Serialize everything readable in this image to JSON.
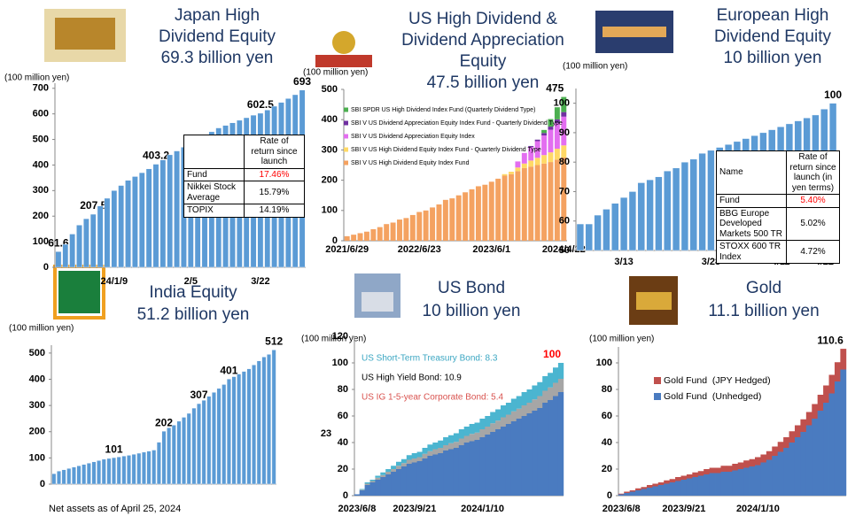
{
  "footnote": "Net assets as of April 25, 2024",
  "chart_data": [
    {
      "type": "bar",
      "title": [
        "Japan High",
        "Dividend Equity",
        "69.3 billion yen"
      ],
      "y_unit": "(100 million yen)",
      "color": "#5b9bd5",
      "ylim": [
        0,
        720
      ],
      "yticks": [
        0,
        100,
        200,
        300,
        400,
        500,
        600,
        700
      ],
      "categories": [
        null,
        null,
        null,
        null,
        null,
        null,
        null,
        null,
        "24/1/9",
        null,
        null,
        null,
        null,
        null,
        null,
        null,
        null,
        null,
        null,
        "2/5",
        null,
        null,
        null,
        null,
        null,
        null,
        null,
        null,
        null,
        "3/22",
        null,
        null,
        null,
        null,
        null,
        null
      ],
      "values": [
        61.6,
        90,
        130,
        165,
        190,
        207.5,
        240,
        270,
        300,
        320,
        340,
        355,
        370,
        385,
        403.2,
        420,
        440,
        455,
        470,
        485,
        500,
        515,
        530,
        545,
        555,
        565,
        575,
        585,
        595,
        602.5,
        615,
        630,
        645,
        660,
        675,
        693
      ],
      "value_labels": [
        "61.6",
        null,
        null,
        null,
        null,
        "207.5",
        null,
        null,
        null,
        null,
        null,
        null,
        null,
        null,
        "403.2",
        null,
        null,
        null,
        null,
        null,
        null,
        null,
        null,
        null,
        null,
        null,
        null,
        null,
        null,
        "602.5",
        null,
        null,
        null,
        null,
        null,
        "693"
      ],
      "table": {
        "header": [
          "Rate of return since launch"
        ],
        "rows": [
          [
            "Fund",
            "17.46%"
          ],
          [
            "Nikkei Stock Average",
            "15.79%"
          ],
          [
            "TOPIX",
            "14.19%"
          ]
        ]
      }
    },
    {
      "type": "bar",
      "stacked": true,
      "title": [
        "US High Dividend &",
        "Dividend Appreciation",
        "Equity",
        "47.5 billion yen"
      ],
      "y_unit": "(100 million yen)",
      "ylim": [
        0,
        500
      ],
      "yticks": [
        0,
        100,
        200,
        300,
        400,
        500
      ],
      "categories": [
        "2021/6/29",
        null,
        null,
        null,
        null,
        null,
        null,
        null,
        null,
        null,
        null,
        "2022/6/23",
        null,
        null,
        null,
        null,
        null,
        null,
        null,
        null,
        null,
        null,
        "2023/6/1",
        null,
        null,
        null,
        null,
        null,
        null,
        null,
        null,
        null,
        null,
        "2024/4/22"
      ],
      "total_label": "475",
      "series": [
        {
          "name": "SBI V US High Dividend Equity Index Fund",
          "color": "#f4a261",
          "values": [
            15,
            20,
            25,
            30,
            38,
            45,
            55,
            60,
            70,
            75,
            85,
            95,
            100,
            110,
            120,
            135,
            140,
            150,
            160,
            170,
            180,
            185,
            195,
            205,
            215,
            220,
            230,
            240,
            245,
            250,
            255,
            260,
            268,
            275
          ]
        },
        {
          "name": "SBI V US High Dividend Equity Index Fund - Quarterly Dividend Type",
          "color": "#ffd966",
          "values": [
            0,
            0,
            0,
            0,
            0,
            0,
            0,
            0,
            0,
            0,
            0,
            0,
            0,
            0,
            0,
            0,
            0,
            0,
            0,
            0,
            0,
            0,
            0,
            0,
            5,
            8,
            12,
            15,
            20,
            24,
            28,
            32,
            36,
            40
          ]
        },
        {
          "name": "SBI V US Dividend Appreciation Equity Index",
          "color": "#e36ef0",
          "values": [
            0,
            0,
            0,
            0,
            0,
            0,
            0,
            0,
            0,
            0,
            0,
            0,
            0,
            0,
            0,
            0,
            0,
            0,
            0,
            0,
            0,
            0,
            0,
            0,
            0,
            0,
            20,
            35,
            45,
            55,
            65,
            75,
            85,
            95
          ]
        },
        {
          "name": "SBI V US Dividend Appreciation Equity Index Fund - Quarterly Dividend Type",
          "color": "#7030a0",
          "values": [
            0,
            0,
            0,
            0,
            0,
            0,
            0,
            0,
            0,
            0,
            0,
            0,
            0,
            0,
            0,
            0,
            0,
            0,
            0,
            0,
            0,
            0,
            0,
            0,
            0,
            0,
            0,
            0,
            3,
            5,
            8,
            10,
            12,
            15
          ]
        },
        {
          "name": "SBI SPDR US High Dividend Index Fund (Quarterly Dividend Type)",
          "color": "#4caf50",
          "values": [
            0,
            0,
            0,
            0,
            0,
            0,
            0,
            0,
            0,
            0,
            0,
            0,
            0,
            0,
            0,
            0,
            0,
            0,
            0,
            0,
            0,
            0,
            0,
            0,
            0,
            0,
            0,
            0,
            0,
            0,
            10,
            25,
            40,
            50
          ]
        }
      ]
    },
    {
      "type": "bar",
      "title": [
        "European High",
        "Dividend Equity",
        "10 billion yen"
      ],
      "y_unit": "(100 million yen)",
      "color": "#5b9bd5",
      "ylim": [
        50,
        105
      ],
      "yticks": [
        50,
        60,
        70,
        80,
        90,
        100
      ],
      "categories": [
        null,
        null,
        null,
        null,
        null,
        "3/13",
        null,
        null,
        null,
        null,
        null,
        null,
        null,
        null,
        null,
        "3/28",
        null,
        null,
        null,
        null,
        null,
        null,
        null,
        "4/11",
        null,
        null,
        null,
        null,
        "4/22",
        null
      ],
      "values": [
        59,
        59,
        62,
        64,
        66,
        68,
        70,
        73,
        74,
        75,
        77,
        78,
        80,
        81,
        83,
        84,
        85,
        86,
        87,
        88,
        89,
        90,
        91,
        92,
        93,
        94,
        95,
        96,
        98,
        100
      ],
      "value_labels": [
        null,
        null,
        null,
        null,
        null,
        null,
        null,
        null,
        null,
        null,
        null,
        null,
        null,
        null,
        null,
        null,
        null,
        null,
        null,
        null,
        null,
        null,
        null,
        null,
        null,
        null,
        null,
        null,
        null,
        "100"
      ],
      "table": {
        "header": [
          "Name",
          "Rate of return since launch (in yen terms)"
        ],
        "rows": [
          [
            "Fund",
            "5.40%"
          ],
          [
            "BBG Europe Developed Markets 500 TR",
            "5.02%"
          ],
          [
            "STOXX 600 TR Index",
            "4.72%"
          ]
        ]
      }
    },
    {
      "type": "bar",
      "title": [
        "India Equity",
        "51.2 billion yen"
      ],
      "y_unit": "(100 million yen)",
      "color": "#5b9bd5",
      "ylim": [
        0,
        530
      ],
      "yticks": [
        0,
        100,
        200,
        300,
        400,
        500
      ],
      "values": [
        40,
        50,
        55,
        60,
        65,
        70,
        75,
        80,
        85,
        90,
        95,
        98,
        101,
        104,
        107,
        110,
        114,
        118,
        122,
        126,
        130,
        160,
        202,
        215,
        225,
        240,
        255,
        270,
        290,
        307,
        320,
        335,
        350,
        365,
        380,
        401,
        410,
        420,
        430,
        440,
        455,
        470,
        485,
        495,
        512
      ],
      "value_labels": [
        null,
        null,
        null,
        null,
        null,
        null,
        null,
        null,
        null,
        null,
        null,
        null,
        "101",
        null,
        null,
        null,
        null,
        null,
        null,
        null,
        null,
        null,
        "202",
        null,
        null,
        null,
        null,
        null,
        null,
        "307",
        null,
        null,
        null,
        null,
        null,
        "401",
        null,
        null,
        null,
        null,
        null,
        null,
        null,
        null,
        "512"
      ]
    },
    {
      "type": "area",
      "stacked": true,
      "title": [
        "US Bond",
        "10 billion yen"
      ],
      "y_unit": "(100 million yen)",
      "ylabel": "23",
      "ylim": [
        0,
        120
      ],
      "yticks": [
        0,
        20,
        40,
        60,
        80,
        100,
        120
      ],
      "categories": [
        "2023/6/8",
        null,
        null,
        null,
        null,
        null,
        null,
        null,
        null,
        null,
        null,
        "2023/9/21",
        null,
        null,
        null,
        null,
        null,
        null,
        null,
        null,
        null,
        null,
        null,
        null,
        "2024/1/10",
        null,
        null,
        null,
        null,
        null,
        null,
        null,
        null,
        null,
        null,
        null,
        null,
        null,
        null,
        null
      ],
      "total_label": "100",
      "total_label_color": "#ff0000",
      "series": [
        {
          "name": "US IG 1-5-year Corporate Bond: 5.4",
          "color": "#4a7bc0",
          "legend_color": "#d9534f",
          "values": [
            1,
            4,
            8,
            10,
            12,
            14,
            16,
            18,
            20,
            22,
            24,
            25,
            26,
            28,
            30,
            31,
            32,
            34,
            35,
            36,
            38,
            40,
            41,
            42,
            44,
            46,
            48,
            50,
            52,
            54,
            56,
            58,
            60,
            62,
            64,
            66,
            70,
            72,
            75,
            78
          ]
        },
        {
          "name": "US High Yield Bond: 10.9",
          "color": "#a6a6a6",
          "legend_color": "#000000",
          "values": [
            0,
            0.5,
            1,
            1,
            1.5,
            1.5,
            2,
            2,
            2.5,
            2.5,
            3,
            3,
            3,
            3.5,
            3.5,
            4,
            4,
            4,
            4.5,
            4.5,
            5,
            5,
            5.5,
            5.5,
            6,
            6,
            6.5,
            6.5,
            7,
            7,
            7.5,
            7.5,
            8,
            8,
            8.5,
            9,
            9,
            9.5,
            10,
            10
          ]
        },
        {
          "name": "US Short-Term Treasury Bond: 8.3",
          "color": "#4bb5d0",
          "legend_color": "#3aa6c2",
          "values": [
            0,
            0.5,
            1,
            1,
            1.5,
            2,
            2,
            2.5,
            3,
            3,
            3.5,
            4,
            4,
            4.5,
            5,
            5,
            5.5,
            6,
            6,
            6.5,
            7,
            7,
            7.5,
            7.5,
            8,
            8,
            8.5,
            8.5,
            9,
            9,
            9.5,
            9.5,
            10,
            10,
            10.5,
            10.5,
            11,
            11,
            11.5,
            12
          ]
        }
      ]
    },
    {
      "type": "area",
      "stacked": true,
      "title": [
        "Gold",
        "11.1 billion yen"
      ],
      "y_unit": "(100 million yen)",
      "ylim": [
        0,
        112
      ],
      "yticks": [
        0,
        20,
        40,
        60,
        80,
        100
      ],
      "categories": [
        "2023/6/8",
        null,
        null,
        null,
        null,
        null,
        null,
        null,
        null,
        null,
        null,
        "2023/9/21",
        null,
        null,
        null,
        null,
        null,
        null,
        null,
        null,
        null,
        null,
        null,
        null,
        "2024/1/10",
        null,
        null,
        null,
        null,
        null,
        null,
        null,
        null,
        null,
        null,
        null,
        null,
        null,
        null,
        null
      ],
      "total_label": "110.6",
      "series": [
        {
          "name": "Gold Fund  (Unhedged)",
          "color": "#4a7bc0",
          "values": [
            1,
            2,
            3,
            4,
            5,
            6,
            7,
            8,
            9,
            10,
            11,
            12,
            13,
            14,
            15,
            16,
            17,
            17,
            18,
            18,
            19,
            20,
            21,
            22,
            23,
            25,
            27,
            30,
            33,
            36,
            40,
            44,
            48,
            53,
            58,
            64,
            70,
            77,
            86,
            95
          ]
        },
        {
          "name": "Gold Fund  (JPY Hedged)",
          "color": "#c0504d",
          "values": [
            0.5,
            1,
            1,
            1.5,
            1.5,
            2,
            2,
            2,
            2.5,
            2.5,
            3,
            3,
            3,
            3.5,
            3.5,
            4,
            4,
            4,
            4.5,
            4.5,
            5,
            5,
            5.5,
            5.5,
            6,
            6,
            6.5,
            7,
            7.5,
            8,
            8.5,
            9,
            9.5,
            10,
            11,
            12,
            13,
            14,
            14.5,
            15.6
          ]
        }
      ]
    }
  ]
}
